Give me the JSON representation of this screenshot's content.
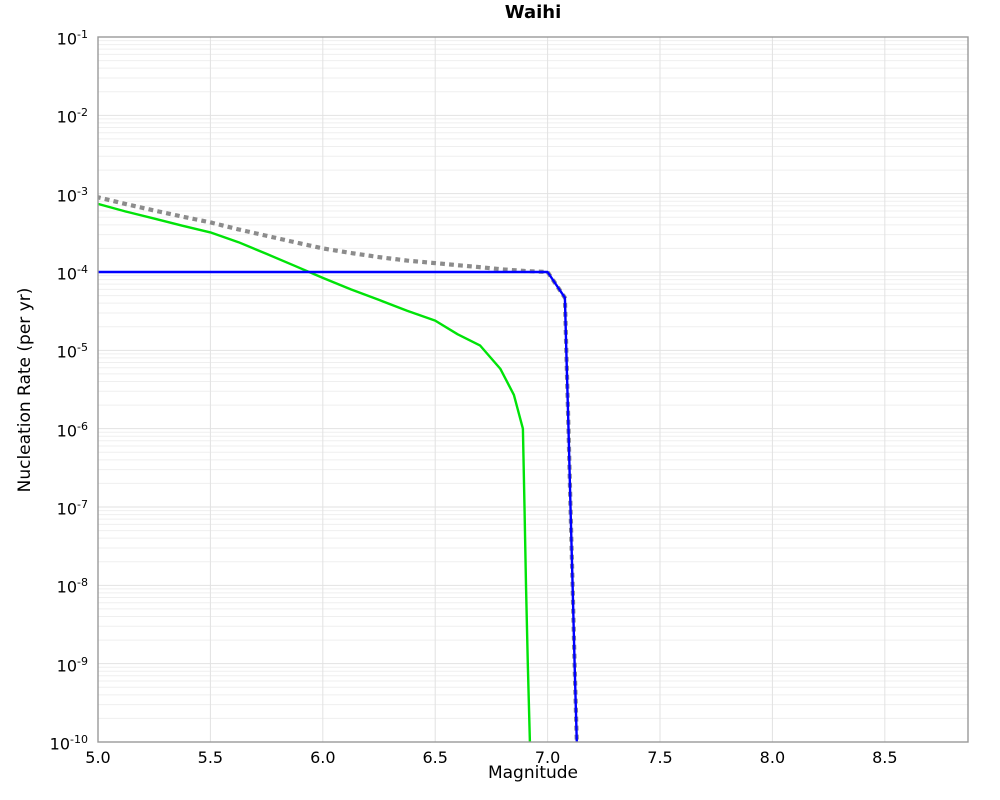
{
  "chart_data": {
    "type": "line",
    "title": "Waihi",
    "xlabel": "Magnitude",
    "ylabel": "Nucleation Rate (per yr)",
    "x_axis": {
      "min": 5.0,
      "max": 8.87,
      "tick_values": [
        5.0,
        5.5,
        6.0,
        6.5,
        7.0,
        7.5,
        8.0,
        8.5
      ],
      "tick_labels": [
        "5.0",
        "5.5",
        "6.0",
        "6.5",
        "7.0",
        "7.5",
        "8.0",
        "8.5"
      ]
    },
    "y_axis": {
      "scale": "log",
      "min_exponent": -10,
      "max_exponent": -1,
      "tick_exponents": [
        -1,
        -2,
        -3,
        -4,
        -5,
        -6,
        -7,
        -8,
        -9,
        -10
      ],
      "tick_base": "10"
    },
    "grid": {
      "major_color": "#e2e2e2",
      "minor_color": "#efefef",
      "vertical_major_only": true
    },
    "axis_border_color": "#999999",
    "background_color": "#ffffff",
    "series": [
      {
        "name": "gray-dotted-total-rate",
        "color": "#8c8c8c",
        "style": "dotted",
        "width": 4.2,
        "points": [
          [
            5.0,
            0.0009
          ],
          [
            5.125,
            0.000735
          ],
          [
            5.25,
            0.00061
          ],
          [
            5.375,
            0.00051
          ],
          [
            5.5,
            0.00043
          ],
          [
            5.625,
            0.00035
          ],
          [
            5.75,
            0.00029
          ],
          [
            5.875,
            0.00024
          ],
          [
            6.0,
            0.0002
          ],
          [
            6.125,
            0.000175
          ],
          [
            6.25,
            0.000155
          ],
          [
            6.375,
            0.00014
          ],
          [
            6.5,
            0.00013
          ],
          [
            6.6,
            0.000122
          ],
          [
            6.7,
            0.000115
          ],
          [
            6.8,
            0.000108
          ],
          [
            6.9,
            0.000103
          ],
          [
            7.0,
            0.0001
          ],
          [
            7.077,
            4.7e-05
          ],
          [
            7.083,
            1e-05
          ],
          [
            7.093,
            1e-06
          ],
          [
            7.102,
            1e-07
          ],
          [
            7.111,
            1e-08
          ],
          [
            7.12,
            1e-09
          ],
          [
            7.13,
            1e-10
          ]
        ]
      },
      {
        "name": "green-solid-rate",
        "color": "#00e308",
        "style": "solid",
        "width": 2.4,
        "points": [
          [
            5.0,
            0.00074
          ],
          [
            5.125,
            0.00059
          ],
          [
            5.25,
            0.00048
          ],
          [
            5.375,
            0.00039
          ],
          [
            5.5,
            0.00032
          ],
          [
            5.625,
            0.00024
          ],
          [
            5.75,
            0.00017
          ],
          [
            5.875,
            0.00012
          ],
          [
            6.0,
            8.4e-05
          ],
          [
            6.125,
            6e-05
          ],
          [
            6.25,
            4.4e-05
          ],
          [
            6.375,
            3.2e-05
          ],
          [
            6.5,
            2.4e-05
          ],
          [
            6.6,
            1.6e-05
          ],
          [
            6.7,
            1.15e-05
          ],
          [
            6.79,
            5.8e-06
          ],
          [
            6.85,
            2.7e-06
          ],
          [
            6.89,
            1e-06
          ],
          [
            6.897,
            1e-07
          ],
          [
            6.904,
            1e-08
          ],
          [
            6.912,
            1e-09
          ],
          [
            6.921,
            1e-10
          ]
        ]
      },
      {
        "name": "blue-solid-rate",
        "color": "#0000ff",
        "style": "solid",
        "width": 2.4,
        "points": [
          [
            5.0,
            0.0001
          ],
          [
            7.0,
            0.0001
          ],
          [
            7.077,
            4.7e-05
          ],
          [
            7.083,
            1e-05
          ],
          [
            7.093,
            1e-06
          ],
          [
            7.102,
            1e-07
          ],
          [
            7.111,
            1e-08
          ],
          [
            7.12,
            1e-09
          ],
          [
            7.13,
            1e-10
          ]
        ]
      }
    ]
  }
}
